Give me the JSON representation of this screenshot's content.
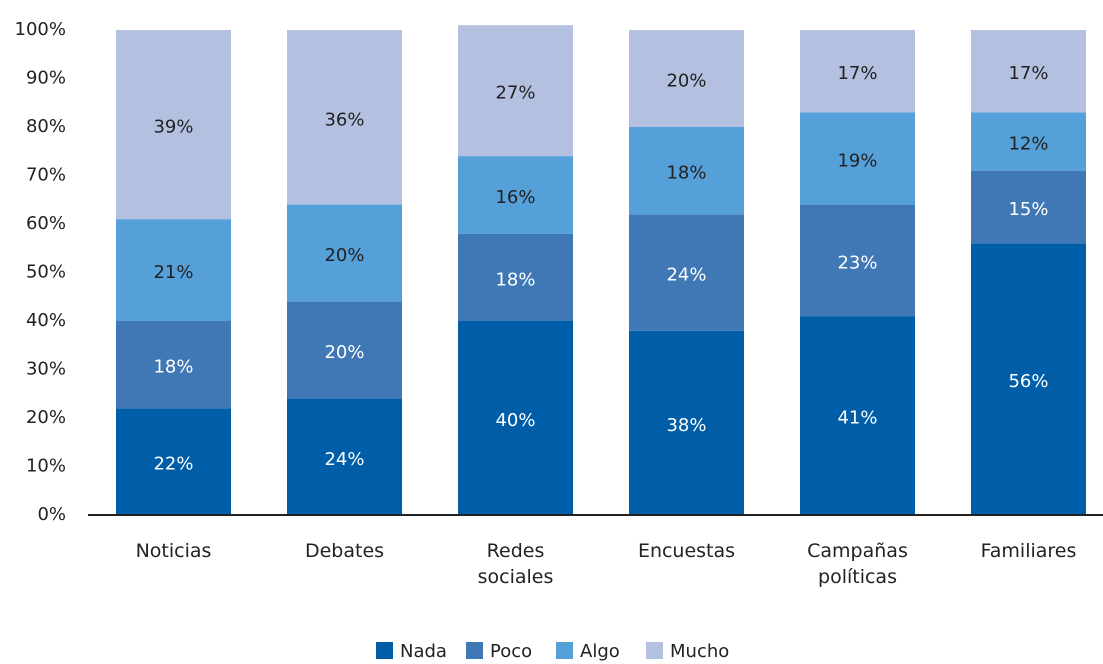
{
  "chart_data": {
    "type": "stacked_bar",
    "categories": [
      "Noticias",
      "Debates",
      "Redes sociales",
      "Encuestas",
      "Campañas políticas",
      "Familiares"
    ],
    "series": [
      {
        "name": "Nada",
        "color": "#005ea8",
        "values": [
          22,
          24,
          40,
          38,
          41,
          56
        ],
        "value_labels": [
          "22%",
          "24%",
          "40%",
          "38%",
          "41%",
          "56%"
        ]
      },
      {
        "name": "Poco",
        "color": "#3f78b5",
        "values": [
          18,
          20,
          18,
          24,
          23,
          15
        ],
        "value_labels": [
          "18%",
          "20%",
          "18%",
          "24%",
          "23%",
          "15%"
        ]
      },
      {
        "name": "Algo",
        "color": "#55a0d9",
        "values": [
          21,
          20,
          16,
          18,
          19,
          12
        ],
        "value_labels": [
          "21%",
          "20%",
          "16%",
          "18%",
          "19%",
          "12%"
        ]
      },
      {
        "name": "Mucho",
        "color": "#b4c0e0",
        "values": [
          39,
          36,
          27,
          20,
          17,
          17
        ],
        "value_labels": [
          "39%",
          "36%",
          "27%",
          "20%",
          "17%",
          "17%"
        ]
      }
    ],
    "ylim": [
      0,
      100
    ],
    "yticks": [
      {
        "value": 0,
        "label": "0%"
      },
      {
        "value": 10,
        "label": "10%"
      },
      {
        "value": 20,
        "label": "20%"
      },
      {
        "value": 30,
        "label": "30%"
      },
      {
        "value": 40,
        "label": "40%"
      },
      {
        "value": 50,
        "label": "50%"
      },
      {
        "value": 60,
        "label": "60%"
      },
      {
        "value": 70,
        "label": "70%"
      },
      {
        "value": 80,
        "label": "80%"
      },
      {
        "value": 90,
        "label": "90%"
      },
      {
        "value": 100,
        "label": "100%"
      }
    ],
    "legend": "bottom"
  }
}
